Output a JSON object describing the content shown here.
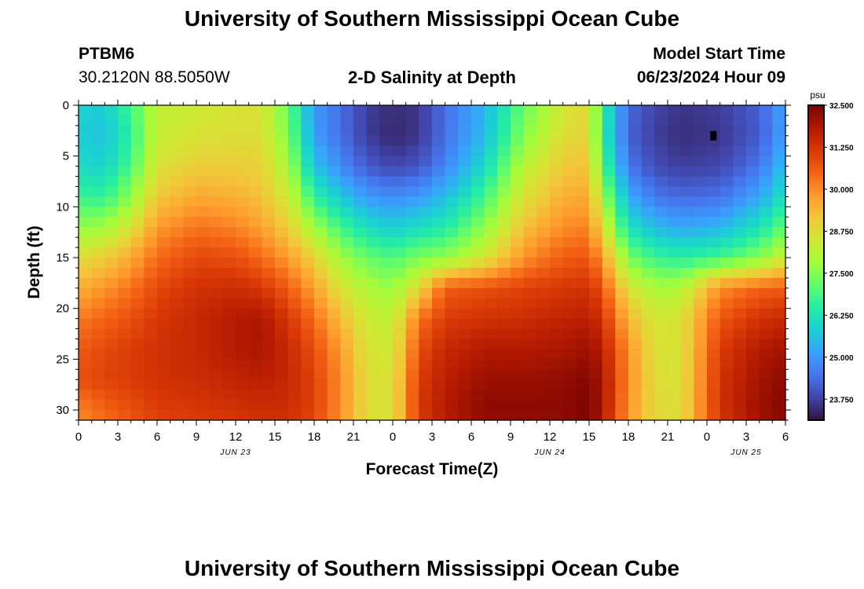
{
  "page": {
    "title_top": "University of Southern Mississippi Ocean Cube",
    "title_bottom": "University of Southern Mississippi Ocean Cube",
    "station_id": "PTBM6",
    "station_coords": "30.2120N  88.5050W",
    "plot_title": "2-D Salinity at Depth",
    "model_start_label": "Model Start Time",
    "model_start_value": "06/23/2024 Hour 09"
  },
  "chart_data": {
    "type": "heatmap",
    "title": "2-D Salinity at Depth",
    "xlabel": "Forecast Time(Z)",
    "ylabel": "Depth (ft)",
    "x_range_hours": [
      0,
      54
    ],
    "x_ticks": {
      "hours": [
        0,
        3,
        6,
        9,
        12,
        15,
        18,
        21,
        24,
        27,
        30,
        33,
        36,
        39,
        42,
        45,
        48,
        51,
        54
      ],
      "labels": [
        "0",
        "3",
        "6",
        "9",
        "12",
        "15",
        "18",
        "21",
        "0",
        "3",
        "6",
        "9",
        "12",
        "15",
        "18",
        "21",
        "0",
        "3",
        "6"
      ]
    },
    "date_labels": [
      {
        "hour": 12,
        "text": "JUN 23"
      },
      {
        "hour": 36,
        "text": "JUN 24"
      },
      {
        "hour": 51,
        "text": "JUN 25"
      }
    ],
    "y_range_ft": [
      0,
      31
    ],
    "y_ticks": [
      0,
      5,
      10,
      15,
      20,
      25,
      30
    ],
    "colorbar": {
      "unit": "psu",
      "min": 23.125,
      "max": 32.5,
      "ticks": [
        23.75,
        25.0,
        26.25,
        27.5,
        28.75,
        30.0,
        31.25,
        32.5
      ],
      "tick_labels": [
        "23.750",
        "25.000",
        "26.250",
        "27.500",
        "28.750",
        "30.000",
        "31.250",
        "32.500"
      ],
      "colors": [
        "#30123b",
        "#4145ab",
        "#4675ed",
        "#39a2fc",
        "#1bcfd4",
        "#24eca6",
        "#61fc6c",
        "#a4fc3b",
        "#d1e834",
        "#f3c63a",
        "#fe9b2d",
        "#f36315",
        "#d93806",
        "#b11901",
        "#7a0402"
      ]
    },
    "grid_resolution": {
      "time_steps": 54,
      "depth_levels": 31
    },
    "salinity_anchors": {
      "description": "Salinity (psu) at depth levels 0,3,6,9,12,15,18,21,24,27,30,31 ft for each forecast hour",
      "depths_ft": [
        0,
        3,
        6,
        9,
        12,
        15,
        18,
        21,
        24,
        27,
        30,
        31
      ],
      "profiles": [
        {
          "hour": 0,
          "psu": [
            25.9,
            25.8,
            26.0,
            26.7,
            27.6,
            28.7,
            29.5,
            30.2,
            30.6,
            30.8,
            30.1,
            30.0
          ]
        },
        {
          "hour": 2,
          "psu": [
            25.8,
            25.6,
            25.9,
            26.6,
            27.8,
            29.0,
            29.9,
            30.5,
            30.9,
            31.0,
            30.5,
            30.4
          ]
        },
        {
          "hour": 4,
          "psu": [
            26.8,
            26.6,
            26.9,
            27.6,
            28.6,
            29.6,
            30.3,
            30.8,
            31.1,
            31.1,
            30.8,
            30.7
          ]
        },
        {
          "hour": 6,
          "psu": [
            28.2,
            28.3,
            28.6,
            29.1,
            29.8,
            30.4,
            30.9,
            31.2,
            31.3,
            31.3,
            31.1,
            31.0
          ]
        },
        {
          "hour": 9,
          "psu": [
            28.4,
            28.6,
            29.0,
            29.6,
            30.3,
            30.9,
            31.3,
            31.5,
            31.5,
            31.4,
            31.2,
            31.1
          ]
        },
        {
          "hour": 12,
          "psu": [
            28.6,
            28.7,
            29.0,
            29.5,
            30.1,
            30.8,
            31.4,
            31.8,
            31.8,
            31.6,
            31.3,
            31.2
          ]
        },
        {
          "hour": 14,
          "psu": [
            28.6,
            28.7,
            28.9,
            29.2,
            29.7,
            30.4,
            31.2,
            31.9,
            31.9,
            31.7,
            31.4,
            31.3
          ]
        },
        {
          "hour": 16,
          "psu": [
            27.2,
            27.4,
            27.9,
            28.4,
            29.0,
            29.8,
            30.6,
            31.2,
            31.5,
            31.5,
            31.4,
            31.3
          ]
        },
        {
          "hour": 18,
          "psu": [
            25.0,
            25.1,
            25.6,
            26.6,
            27.8,
            28.9,
            29.7,
            30.4,
            30.8,
            31.0,
            31.0,
            30.9
          ]
        },
        {
          "hour": 20,
          "psu": [
            24.4,
            24.4,
            24.8,
            25.7,
            26.8,
            27.8,
            28.6,
            29.3,
            29.8,
            30.0,
            30.0,
            29.9
          ]
        },
        {
          "hour": 22,
          "psu": [
            23.7,
            23.7,
            24.1,
            25.0,
            26.1,
            27.2,
            28.0,
            28.4,
            28.6,
            28.7,
            28.7,
            28.7
          ]
        },
        {
          "hour": 24,
          "psu": [
            23.5,
            23.4,
            23.8,
            24.8,
            25.8,
            26.9,
            27.7,
            28.2,
            28.4,
            28.6,
            28.6,
            28.6
          ]
        },
        {
          "hour": 26,
          "psu": [
            23.6,
            23.6,
            24.0,
            25.0,
            26.1,
            27.4,
            28.8,
            30.3,
            30.8,
            31.1,
            31.2,
            31.1
          ]
        },
        {
          "hour": 28,
          "psu": [
            24.4,
            24.4,
            24.7,
            25.5,
            26.4,
            27.6,
            30.6,
            31.1,
            31.5,
            31.7,
            31.8,
            31.7
          ]
        },
        {
          "hour": 31,
          "psu": [
            25.4,
            25.5,
            26.0,
            26.8,
            27.6,
            28.5,
            30.8,
            31.3,
            31.8,
            32.1,
            32.3,
            32.2
          ]
        },
        {
          "hour": 34,
          "psu": [
            27.2,
            27.5,
            28.1,
            28.6,
            29.2,
            29.9,
            31.0,
            31.4,
            31.8,
            32.1,
            32.3,
            32.2
          ]
        },
        {
          "hour": 37,
          "psu": [
            28.5,
            28.7,
            29.1,
            29.5,
            30.0,
            30.6,
            31.2,
            31.6,
            31.9,
            32.2,
            32.3,
            32.2
          ]
        },
        {
          "hour": 39,
          "psu": [
            28.8,
            28.9,
            29.2,
            29.6,
            30.1,
            30.7,
            31.3,
            31.7,
            32.1,
            32.4,
            32.5,
            32.4
          ]
        },
        {
          "hour": 40,
          "psu": [
            26.6,
            26.5,
            27.0,
            27.8,
            28.7,
            29.8,
            30.7,
            31.3,
            31.7,
            31.9,
            31.9,
            31.8
          ]
        },
        {
          "hour": 42,
          "psu": [
            24.3,
            24.2,
            24.5,
            25.3,
            26.2,
            27.4,
            28.6,
            29.4,
            29.9,
            30.0,
            29.9,
            29.8
          ]
        },
        {
          "hour": 44,
          "psu": [
            23.8,
            23.7,
            23.9,
            24.5,
            25.5,
            26.7,
            27.9,
            28.5,
            28.6,
            28.7,
            28.8,
            28.8
          ]
        },
        {
          "hour": 46,
          "psu": [
            23.6,
            23.5,
            23.7,
            24.3,
            25.2,
            26.5,
            28.0,
            28.6,
            28.6,
            28.6,
            28.7,
            28.7
          ]
        },
        {
          "hour": 49,
          "psu": [
            23.7,
            23.6,
            23.8,
            24.4,
            25.4,
            26.8,
            30.0,
            30.7,
            31.1,
            31.3,
            31.3,
            31.2
          ]
        },
        {
          "hour": 52,
          "psu": [
            24.2,
            24.1,
            24.5,
            25.2,
            26.2,
            27.5,
            30.5,
            31.3,
            31.8,
            32.0,
            32.1,
            32.0
          ]
        },
        {
          "hour": 54,
          "psu": [
            25.2,
            25.2,
            25.6,
            26.2,
            27.2,
            28.4,
            30.6,
            31.5,
            32.0,
            32.3,
            32.4,
            32.3
          ]
        }
      ]
    },
    "marker": {
      "hour": 48.5,
      "depth_ft": 3
    }
  }
}
